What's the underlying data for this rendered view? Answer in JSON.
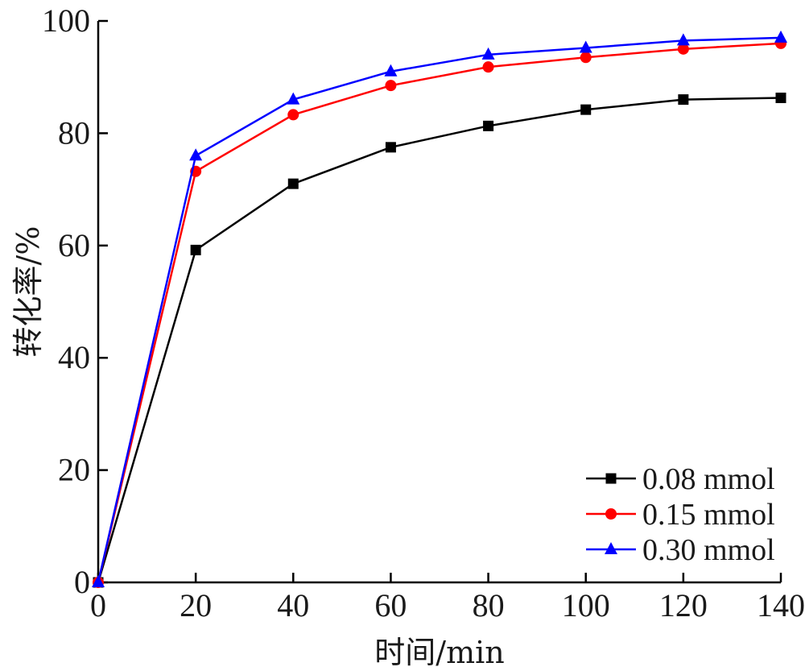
{
  "chart_data": {
    "type": "line",
    "xlabel": "时间/min",
    "ylabel": "转化率/%",
    "xlim": [
      0,
      140
    ],
    "ylim": [
      0,
      100
    ],
    "xticks": [
      0,
      20,
      40,
      60,
      80,
      100,
      120,
      140
    ],
    "yticks": [
      0,
      20,
      40,
      60,
      80,
      100
    ],
    "x": [
      0,
      20,
      40,
      60,
      80,
      100,
      120,
      140
    ],
    "grid": false,
    "legend_position": "bottom-right",
    "series": [
      {
        "name": "0.08 mmol",
        "color": "#000000",
        "marker": "square",
        "values": [
          0,
          59.2,
          71.0,
          77.5,
          81.3,
          84.2,
          86.0,
          86.3
        ]
      },
      {
        "name": "0.15 mmol",
        "color": "#ff0000",
        "marker": "circle",
        "values": [
          0,
          73.2,
          83.3,
          88.5,
          91.8,
          93.5,
          95.0,
          96.0
        ]
      },
      {
        "name": "0.30 mmol",
        "color": "#0000ff",
        "marker": "triangle",
        "values": [
          0,
          76.0,
          86.0,
          91.0,
          94.0,
          95.2,
          96.5,
          97.0
        ]
      }
    ]
  }
}
